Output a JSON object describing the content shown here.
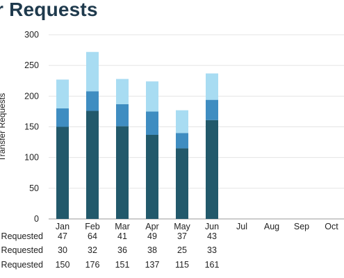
{
  "title": "r Requests",
  "chart_data": {
    "type": "bar",
    "stacked": true,
    "categories": [
      "Jan",
      "Feb",
      "Mar",
      "Apr",
      "May",
      "Jun",
      "Jul",
      "Aug",
      "Sep",
      "Oct"
    ],
    "ylabel": "Transfer Requests",
    "ylim": [
      0,
      300
    ],
    "yticks": [
      0,
      50,
      100,
      150,
      200,
      250,
      300
    ],
    "grid": true,
    "series": [
      {
        "name": "s Requested",
        "color": "#22596b",
        "values": [
          150,
          176,
          151,
          137,
          115,
          161,
          null,
          null,
          null,
          null
        ]
      },
      {
        "name": "s Requested",
        "color": "#3f8dc1",
        "values": [
          30,
          32,
          36,
          38,
          25,
          33,
          null,
          null,
          null,
          null
        ]
      },
      {
        "name": "s Requested",
        "color": "#a8dcf2",
        "values": [
          47,
          64,
          41,
          49,
          37,
          43,
          null,
          null,
          null,
          null
        ]
      }
    ],
    "table_rows": [
      {
        "label": "s Requested",
        "values": [
          47,
          64,
          41,
          49,
          37,
          43
        ]
      },
      {
        "label": "s Requested",
        "values": [
          30,
          32,
          36,
          38,
          25,
          33
        ]
      },
      {
        "label": "s Requested",
        "values": [
          150,
          176,
          151,
          137,
          115,
          161
        ]
      }
    ]
  }
}
